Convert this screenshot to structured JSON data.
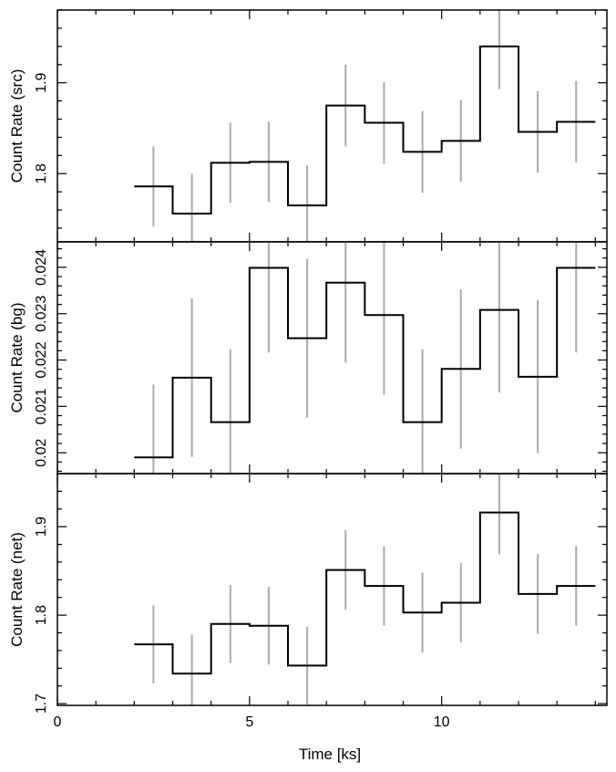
{
  "chart_data": {
    "type": "line",
    "xlabel": "Time [ks]",
    "xlim": [
      0,
      14.3
    ],
    "x_ticks": [
      "0",
      "5",
      "10"
    ],
    "bins": [
      [
        2,
        3
      ],
      [
        3,
        4
      ],
      [
        4,
        5
      ],
      [
        5,
        6
      ],
      [
        6,
        7
      ],
      [
        7,
        8
      ],
      [
        8,
        9
      ],
      [
        9,
        10
      ],
      [
        10,
        11
      ],
      [
        11,
        12
      ],
      [
        12,
        13
      ],
      [
        13,
        14
      ]
    ],
    "panels": [
      {
        "ylabel": "Count Rate (src)",
        "ylim": [
          1.725,
          1.98
        ],
        "y_ticks": [
          "1.8",
          "1.9"
        ],
        "values": [
          1.786,
          1.756,
          1.812,
          1.813,
          1.765,
          1.875,
          1.856,
          1.824,
          1.836,
          1.94,
          1.846,
          1.857
        ],
        "errors": [
          0.044,
          0.044,
          0.044,
          0.044,
          0.044,
          0.045,
          0.045,
          0.045,
          0.045,
          0.047,
          0.045,
          0.045
        ]
      },
      {
        "ylabel": "Count Rate (bg)",
        "ylim": [
          0.01955,
          0.02455
        ],
        "y_ticks": [
          "0.02",
          "0.021",
          "0.022",
          "0.023",
          "0.024"
        ],
        "values": [
          0.0199,
          0.02162,
          0.02066,
          0.02399,
          0.02247,
          0.02367,
          0.02297,
          0.02066,
          0.02181,
          0.02308,
          0.02164,
          0.02399
        ],
        "errors": [
          0.00157,
          0.00171,
          0.00157,
          0.00183,
          0.00171,
          0.00172,
          0.00172,
          0.00157,
          0.00172,
          0.00178,
          0.00165,
          0.00183
        ]
      },
      {
        "ylabel": "Count Rate (net)",
        "ylim": [
          1.698,
          1.96
        ],
        "y_ticks": [
          "1.7",
          "1.8",
          "1.9"
        ],
        "values": [
          1.767,
          1.734,
          1.79,
          1.788,
          1.743,
          1.851,
          1.833,
          1.803,
          1.814,
          1.916,
          1.824,
          1.833
        ],
        "errors": [
          0.044,
          0.044,
          0.044,
          0.044,
          0.044,
          0.045,
          0.045,
          0.045,
          0.045,
          0.047,
          0.045,
          0.045
        ]
      }
    ]
  }
}
